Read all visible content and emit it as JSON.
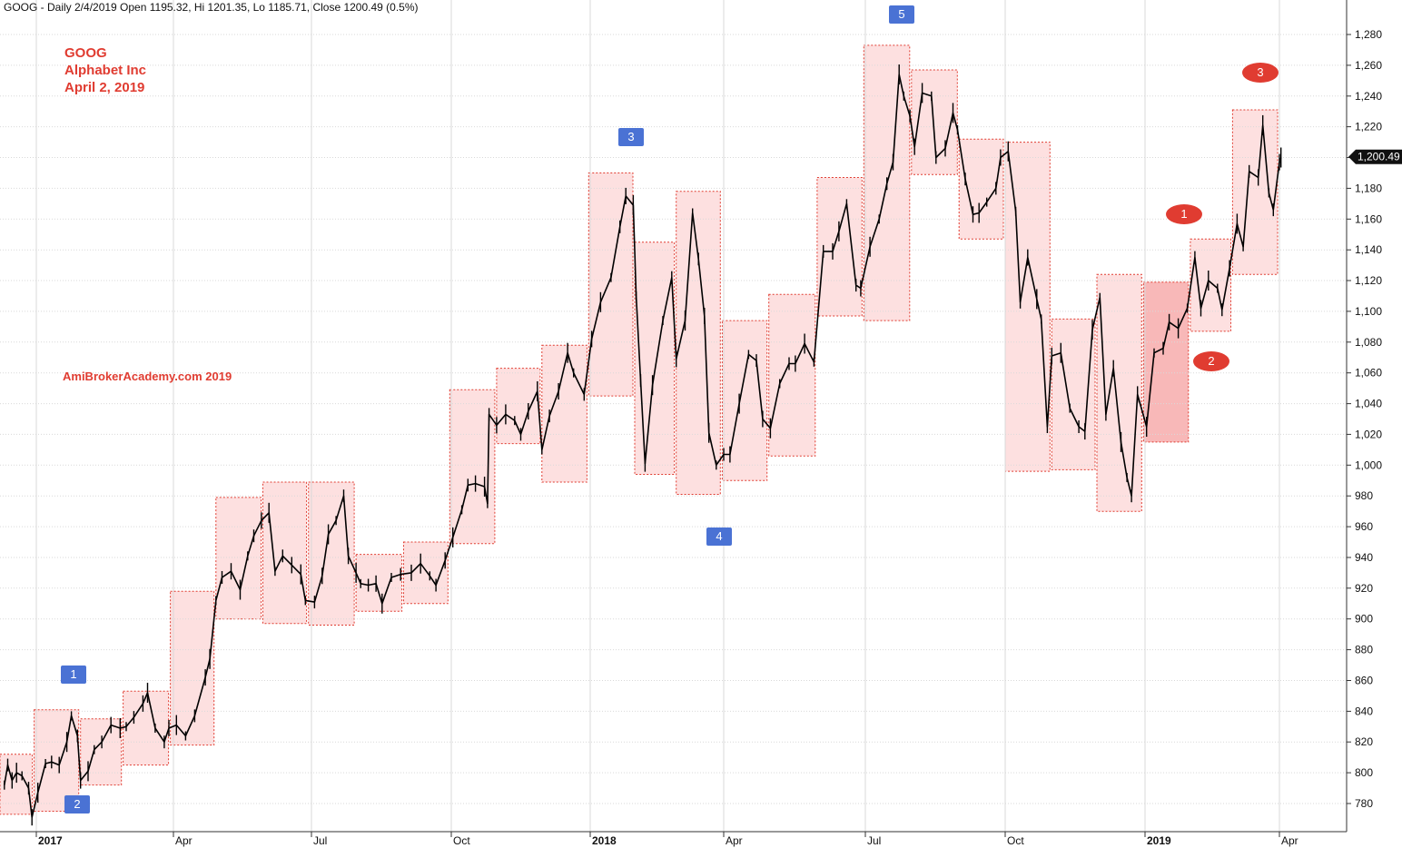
{
  "header": {
    "text": "GOOG - Daily 2/4/2019 Open 1195.32, Hi 1201.35, Lo 1185.71, Close 1200.49 (0.5%)"
  },
  "annotations": {
    "symbol": "GOOG",
    "company": "Alphabet Inc",
    "date": "April 2, 2019",
    "watermark": "AmiBrokerAcademy.com    2019",
    "blue_markers": [
      "1",
      "2",
      "3",
      "4",
      "5"
    ],
    "red_markers": [
      "1",
      "2",
      "3"
    ]
  },
  "colors": {
    "candles": "#000000",
    "box_fill": "#fde0e0",
    "box_fill_highlight": "#f8b8b8",
    "box_border": "#e03c31",
    "blue_marker": "#4a72d4",
    "red_marker": "#e03c31",
    "grid": "#d9d9d9"
  },
  "chart_data": {
    "type": "candlestick",
    "title": "GOOG - Daily 2/4/2019",
    "ylim": [
      762,
      1292
    ],
    "grid": true,
    "y_ticks": [
      780,
      800,
      820,
      840,
      860,
      880,
      900,
      920,
      940,
      960,
      980,
      1000,
      1020,
      1040,
      1060,
      1080,
      1100,
      1120,
      1140,
      1160,
      1180,
      1200,
      1220,
      1240,
      1260,
      1280
    ],
    "y_tick_labels": [
      "780",
      "800",
      "820",
      "840",
      "860",
      "880",
      "900",
      "920",
      "940",
      "960",
      "980",
      "1,000",
      "1,020",
      "1,040",
      "1,060",
      "1,080",
      "1,100",
      "1,120",
      "1,140",
      "1,160",
      "1,180",
      "1,200",
      "1,220",
      "1,240",
      "1,260",
      "1,280"
    ],
    "x_labels": [
      {
        "label": "2017",
        "date": "2017-01-03",
        "bold": true
      },
      {
        "label": "Apr",
        "date": "2017-04-03",
        "bold": false
      },
      {
        "label": "Jul",
        "date": "2017-07-03",
        "bold": false
      },
      {
        "label": "Oct",
        "date": "2017-10-02",
        "bold": false
      },
      {
        "label": "2018",
        "date": "2018-01-02",
        "bold": true
      },
      {
        "label": "Apr",
        "date": "2018-04-02",
        "bold": false
      },
      {
        "label": "Jul",
        "date": "2018-07-02",
        "bold": false
      },
      {
        "label": "Oct",
        "date": "2018-10-01",
        "bold": false
      },
      {
        "label": "2019",
        "date": "2019-01-02",
        "bold": true
      },
      {
        "label": "Apr",
        "date": "2019-04-01",
        "bold": false
      }
    ],
    "last_close": 1200.49,
    "last_close_label": "1,200.49",
    "monthly_boxes": [
      {
        "month": "2016-12",
        "low": 773,
        "high": 812
      },
      {
        "month": "2017-01",
        "low": 775,
        "high": 841
      },
      {
        "month": "2017-02",
        "low": 792,
        "high": 835
      },
      {
        "month": "2017-03",
        "low": 805,
        "high": 853
      },
      {
        "month": "2017-04",
        "low": 818,
        "high": 918
      },
      {
        "month": "2017-05",
        "low": 900,
        "high": 979
      },
      {
        "month": "2017-06",
        "low": 897,
        "high": 989
      },
      {
        "month": "2017-07",
        "low": 896,
        "high": 989
      },
      {
        "month": "2017-08",
        "low": 905,
        "high": 942
      },
      {
        "month": "2017-09",
        "low": 910,
        "high": 950
      },
      {
        "month": "2017-10",
        "low": 949,
        "high": 1049
      },
      {
        "month": "2017-11",
        "low": 1014,
        "high": 1063
      },
      {
        "month": "2017-12",
        "low": 989,
        "high": 1078
      },
      {
        "month": "2018-01",
        "low": 1045,
        "high": 1190
      },
      {
        "month": "2018-02",
        "low": 994,
        "high": 1145
      },
      {
        "month": "2018-03",
        "low": 981,
        "high": 1178
      },
      {
        "month": "2018-04",
        "low": 990,
        "high": 1094
      },
      {
        "month": "2018-05",
        "low": 1006,
        "high": 1111
      },
      {
        "month": "2018-06",
        "low": 1097,
        "high": 1187
      },
      {
        "month": "2018-07",
        "low": 1094,
        "high": 1273
      },
      {
        "month": "2018-08",
        "low": 1189,
        "high": 1257
      },
      {
        "month": "2018-09",
        "low": 1147,
        "high": 1212
      },
      {
        "month": "2018-10",
        "low": 996,
        "high": 1210
      },
      {
        "month": "2018-11",
        "low": 997,
        "high": 1095
      },
      {
        "month": "2018-12",
        "low": 970,
        "high": 1124
      },
      {
        "month": "2019-01",
        "low": 1015,
        "high": 1119,
        "highlight": true
      },
      {
        "month": "2019-02",
        "low": 1087,
        "high": 1147
      },
      {
        "month": "2019-03",
        "low": 1124,
        "high": 1231
      }
    ],
    "daily_close_path": [
      [
        "2016-12-05",
        792
      ],
      [
        "2016-12-08",
        805
      ],
      [
        "2016-12-12",
        795
      ],
      [
        "2016-12-16",
        800
      ],
      [
        "2016-12-21",
        798
      ],
      [
        "2016-12-27",
        790
      ],
      [
        "2016-12-30",
        771
      ],
      [
        "2017-01-04",
        787
      ],
      [
        "2017-01-09",
        806
      ],
      [
        "2017-01-13",
        807
      ],
      [
        "2017-01-18",
        805
      ],
      [
        "2017-01-23",
        820
      ],
      [
        "2017-01-26",
        837
      ],
      [
        "2017-01-30",
        824
      ],
      [
        "2017-02-01",
        795
      ],
      [
        "2017-02-06",
        801
      ],
      [
        "2017-02-10",
        815
      ],
      [
        "2017-02-15",
        820
      ],
      [
        "2017-02-21",
        831
      ],
      [
        "2017-02-27",
        829
      ],
      [
        "2017-03-03",
        830
      ],
      [
        "2017-03-08",
        836
      ],
      [
        "2017-03-14",
        845
      ],
      [
        "2017-03-17",
        852
      ],
      [
        "2017-03-22",
        829
      ],
      [
        "2017-03-28",
        820
      ],
      [
        "2017-03-31",
        829
      ],
      [
        "2017-04-05",
        831
      ],
      [
        "2017-04-11",
        824
      ],
      [
        "2017-04-17",
        837
      ],
      [
        "2017-04-24",
        862
      ],
      [
        "2017-04-27",
        874
      ],
      [
        "2017-05-01",
        912
      ],
      [
        "2017-05-05",
        927
      ],
      [
        "2017-05-11",
        931
      ],
      [
        "2017-05-17",
        919
      ],
      [
        "2017-05-22",
        941
      ],
      [
        "2017-05-26",
        954
      ],
      [
        "2017-05-31",
        964
      ],
      [
        "2017-06-05",
        969
      ],
      [
        "2017-06-09",
        931
      ],
      [
        "2017-06-14",
        941
      ],
      [
        "2017-06-20",
        935
      ],
      [
        "2017-06-26",
        929
      ],
      [
        "2017-06-29",
        912
      ],
      [
        "2017-07-05",
        911
      ],
      [
        "2017-07-10",
        928
      ],
      [
        "2017-07-14",
        955
      ],
      [
        "2017-07-19",
        964
      ],
      [
        "2017-07-24",
        980
      ],
      [
        "2017-07-27",
        941
      ],
      [
        "2017-08-01",
        930
      ],
      [
        "2017-08-04",
        923
      ],
      [
        "2017-08-09",
        922
      ],
      [
        "2017-08-14",
        923
      ],
      [
        "2017-08-18",
        910
      ],
      [
        "2017-08-24",
        927
      ],
      [
        "2017-08-30",
        929
      ],
      [
        "2017-09-06",
        930
      ],
      [
        "2017-09-12",
        936
      ],
      [
        "2017-09-18",
        928
      ],
      [
        "2017-09-22",
        922
      ],
      [
        "2017-09-28",
        938
      ],
      [
        "2017-10-03",
        953
      ],
      [
        "2017-10-09",
        971
      ],
      [
        "2017-10-13",
        987
      ],
      [
        "2017-10-18",
        988
      ],
      [
        "2017-10-24",
        986
      ],
      [
        "2017-10-26",
        975
      ],
      [
        "2017-10-27",
        1033
      ],
      [
        "2017-11-01",
        1026
      ],
      [
        "2017-11-07",
        1033
      ],
      [
        "2017-11-13",
        1029
      ],
      [
        "2017-11-17",
        1020
      ],
      [
        "2017-11-22",
        1035
      ],
      [
        "2017-11-28",
        1048
      ],
      [
        "2017-12-01",
        1010
      ],
      [
        "2017-12-06",
        1032
      ],
      [
        "2017-12-12",
        1048
      ],
      [
        "2017-12-18",
        1073
      ],
      [
        "2017-12-22",
        1060
      ],
      [
        "2017-12-29",
        1046
      ],
      [
        "2018-01-03",
        1082
      ],
      [
        "2018-01-09",
        1106
      ],
      [
        "2018-01-16",
        1122
      ],
      [
        "2018-01-22",
        1155
      ],
      [
        "2018-01-26",
        1175
      ],
      [
        "2018-01-31",
        1169
      ],
      [
        "2018-02-02",
        1110
      ],
      [
        "2018-02-05",
        1055
      ],
      [
        "2018-02-08",
        1001
      ],
      [
        "2018-02-13",
        1052
      ],
      [
        "2018-02-20",
        1094
      ],
      [
        "2018-02-26",
        1122
      ],
      [
        "2018-03-01",
        1069
      ],
      [
        "2018-03-07",
        1094
      ],
      [
        "2018-03-12",
        1164
      ],
      [
        "2018-03-16",
        1134
      ],
      [
        "2018-03-20",
        1097
      ],
      [
        "2018-03-23",
        1021
      ],
      [
        "2018-03-28",
        1000
      ],
      [
        "2018-04-02",
        1007
      ],
      [
        "2018-04-06",
        1007
      ],
      [
        "2018-04-12",
        1040
      ],
      [
        "2018-04-18",
        1072
      ],
      [
        "2018-04-23",
        1068
      ],
      [
        "2018-04-27",
        1030
      ],
      [
        "2018-05-02",
        1024
      ],
      [
        "2018-05-08",
        1053
      ],
      [
        "2018-05-14",
        1066
      ],
      [
        "2018-05-18",
        1066
      ],
      [
        "2018-05-24",
        1079
      ],
      [
        "2018-05-30",
        1067
      ],
      [
        "2018-06-05",
        1139
      ],
      [
        "2018-06-11",
        1139
      ],
      [
        "2018-06-15",
        1152
      ],
      [
        "2018-06-20",
        1170
      ],
      [
        "2018-06-26",
        1117
      ],
      [
        "2018-06-29",
        1115
      ],
      [
        "2018-07-05",
        1142
      ],
      [
        "2018-07-11",
        1160
      ],
      [
        "2018-07-16",
        1183
      ],
      [
        "2018-07-20",
        1197
      ],
      [
        "2018-07-24",
        1254
      ],
      [
        "2018-07-27",
        1240
      ],
      [
        "2018-07-31",
        1227
      ],
      [
        "2018-08-03",
        1207
      ],
      [
        "2018-08-08",
        1242
      ],
      [
        "2018-08-14",
        1240
      ],
      [
        "2018-08-17",
        1200
      ],
      [
        "2018-08-23",
        1206
      ],
      [
        "2018-08-28",
        1229
      ],
      [
        "2018-08-31",
        1218
      ],
      [
        "2018-09-05",
        1186
      ],
      [
        "2018-09-10",
        1163
      ],
      [
        "2018-09-14",
        1164
      ],
      [
        "2018-09-19",
        1171
      ],
      [
        "2018-09-25",
        1180
      ],
      [
        "2018-09-28",
        1200
      ],
      [
        "2018-10-03",
        1204
      ],
      [
        "2018-10-08",
        1165
      ],
      [
        "2018-10-11",
        1106
      ],
      [
        "2018-10-16",
        1135
      ],
      [
        "2018-10-22",
        1108
      ],
      [
        "2018-10-25",
        1095
      ],
      [
        "2018-10-29",
        1025
      ],
      [
        "2018-11-01",
        1071
      ],
      [
        "2018-11-07",
        1073
      ],
      [
        "2018-11-13",
        1037
      ],
      [
        "2018-11-19",
        1025
      ],
      [
        "2018-11-23",
        1022
      ],
      [
        "2018-11-28",
        1088
      ],
      [
        "2018-12-03",
        1109
      ],
      [
        "2018-12-07",
        1033
      ],
      [
        "2018-12-12",
        1063
      ],
      [
        "2018-12-17",
        1015
      ],
      [
        "2018-12-21",
        992
      ],
      [
        "2018-12-24",
        980
      ],
      [
        "2018-12-28",
        1046
      ],
      [
        "2019-01-03",
        1025
      ],
      [
        "2019-01-08",
        1073
      ],
      [
        "2019-01-14",
        1076
      ],
      [
        "2019-01-18",
        1093
      ],
      [
        "2019-01-24",
        1089
      ],
      [
        "2019-01-30",
        1102
      ],
      [
        "2019-02-04",
        1135
      ],
      [
        "2019-02-08",
        1102
      ],
      [
        "2019-02-13",
        1120
      ],
      [
        "2019-02-19",
        1115
      ],
      [
        "2019-02-22",
        1101
      ],
      [
        "2019-02-27",
        1128
      ],
      [
        "2019-03-04",
        1157
      ],
      [
        "2019-03-08",
        1142
      ],
      [
        "2019-03-12",
        1191
      ],
      [
        "2019-03-18",
        1187
      ],
      [
        "2019-03-21",
        1221
      ],
      [
        "2019-03-25",
        1177
      ],
      [
        "2019-03-28",
        1166
      ],
      [
        "2019-04-01",
        1197
      ],
      [
        "2019-04-02",
        1200
      ]
    ]
  }
}
